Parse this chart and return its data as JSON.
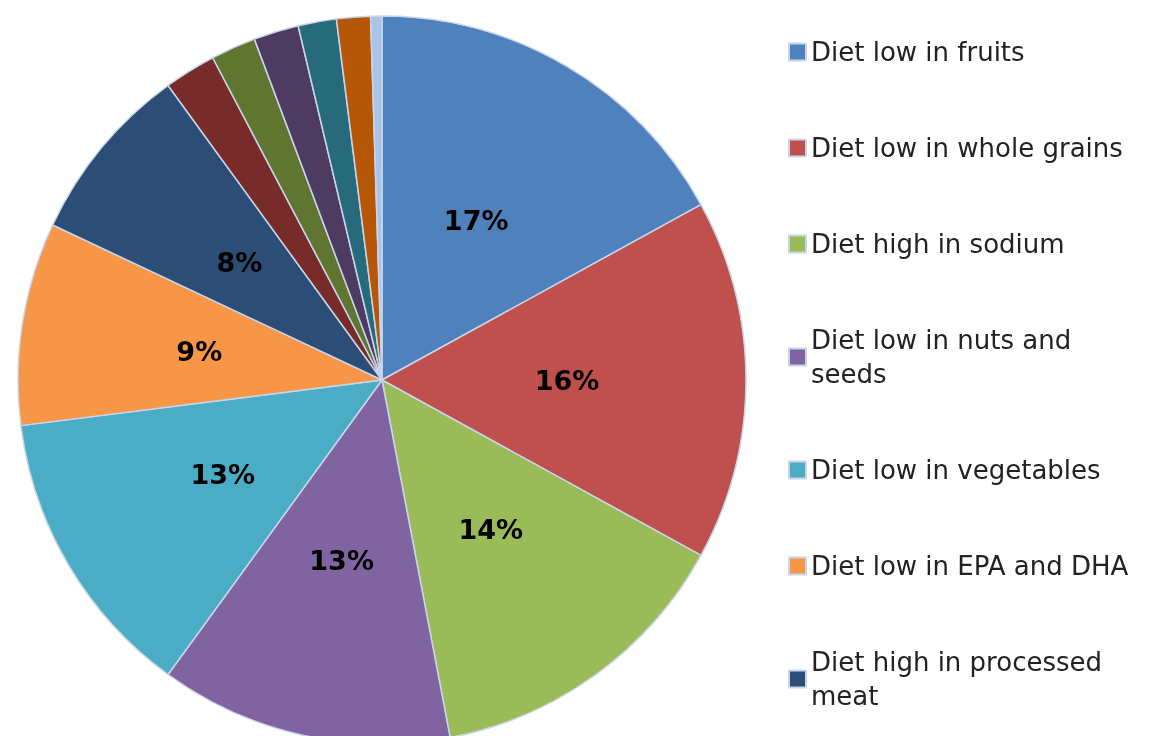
{
  "chart_data": {
    "type": "pie",
    "categories": [
      "Diet low in fruits",
      "Diet low in whole grains",
      "Diet high in sodium",
      "Diet low in nuts and seeds",
      "Diet low in vegetables",
      "Diet low in EPA and DHA",
      "Diet high in processed meat",
      null,
      null,
      null,
      null,
      null,
      null
    ],
    "values": [
      17,
      16,
      14,
      13,
      13,
      9,
      8,
      2.3,
      2,
      2,
      1.7,
      1.5,
      0.5
    ],
    "colors": [
      "#4f81bd",
      "#c0504d",
      "#9bbb59",
      "#8064a2",
      "#4bacc6",
      "#f79646",
      "#2c4d75",
      "#772c2a",
      "#5f7530",
      "#4d3b62",
      "#276a7c",
      "#b65708",
      "#a9c4e8"
    ],
    "value_labels": [
      "17%",
      "16%",
      "14%",
      "13%",
      "13%",
      "9%",
      "8%",
      null,
      null,
      null,
      null,
      null,
      null
    ],
    "legend": "right"
  }
}
